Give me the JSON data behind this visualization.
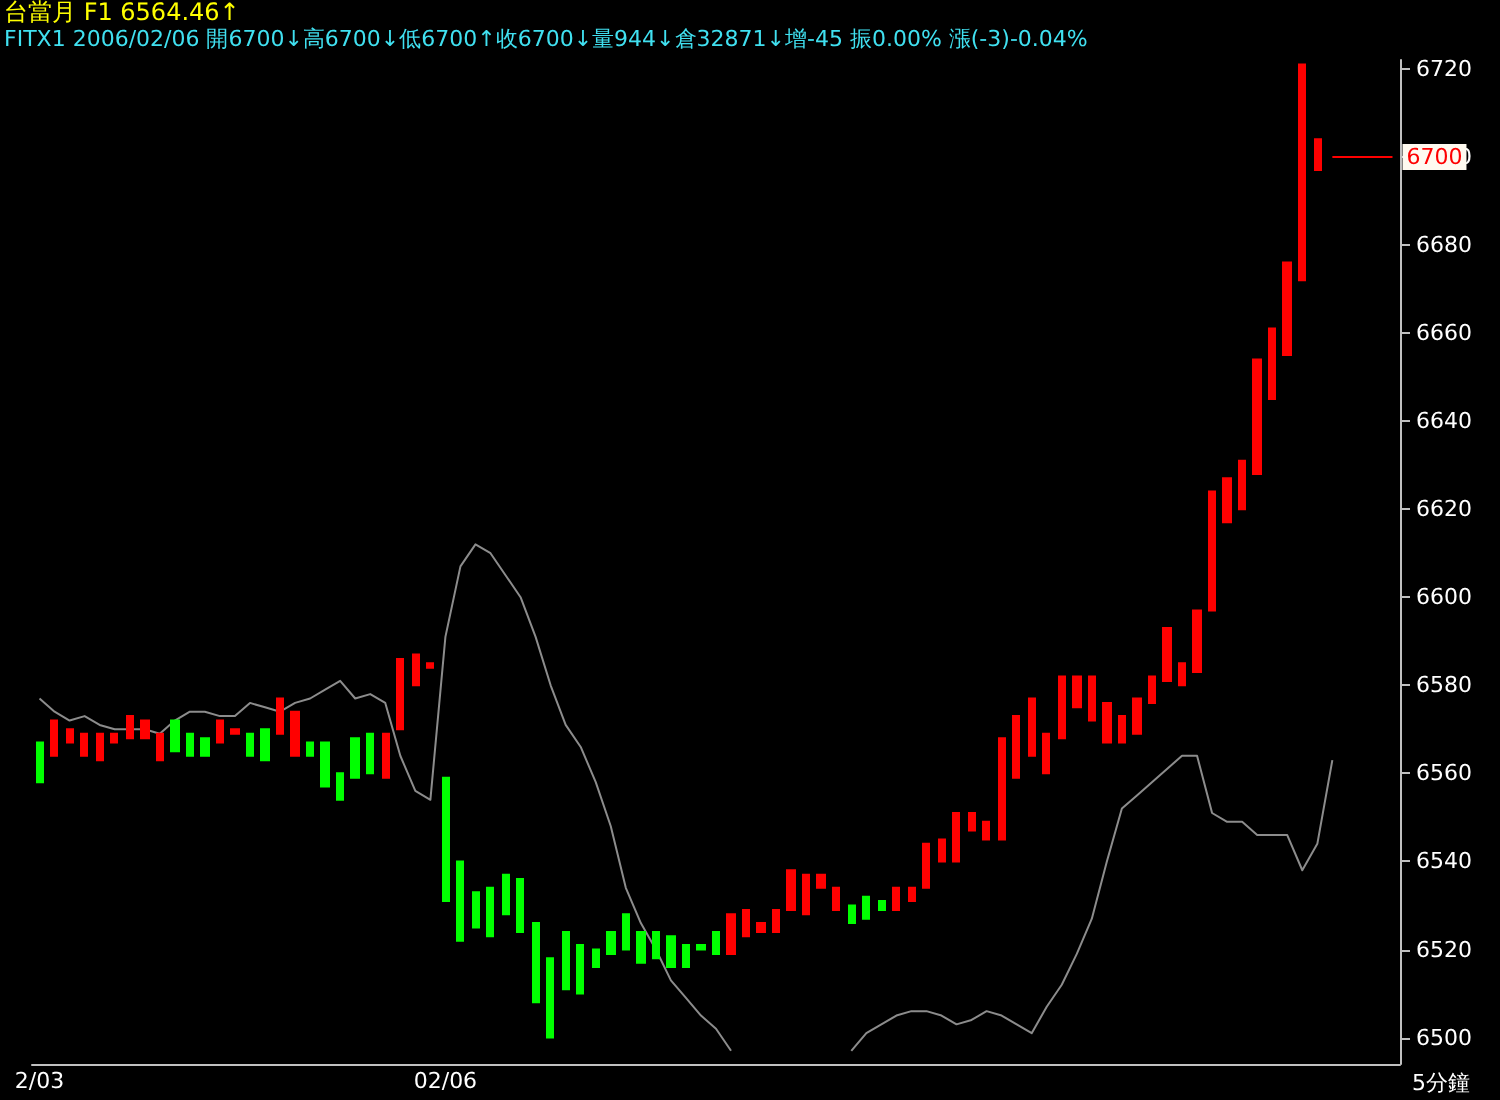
{
  "chart_data": {
    "type": "candlestick",
    "title": "台當月 F1 6564.46↑",
    "subtitle": "FITX1 2006/02/06 開6700↓高6700↓低6700↑收6700↓量944↓倉32871↓增-45 振0.00% 漲(-3)-0.04%",
    "xlabel": "5分鐘",
    "categories": [
      "2/03",
      null,
      null,
      null,
      null,
      null,
      null,
      null,
      null,
      null,
      null,
      null,
      null,
      null,
      null,
      null,
      null,
      null,
      null,
      null,
      null,
      null,
      null,
      null,
      null,
      null,
      null,
      "02/06",
      null,
      null,
      null,
      null,
      null,
      null,
      null,
      null,
      null,
      null,
      null,
      null,
      null,
      null,
      null,
      null,
      null,
      null,
      null,
      null,
      null,
      null,
      null,
      null,
      null,
      null,
      null,
      null,
      null,
      null,
      null,
      null,
      null,
      null,
      null,
      null,
      null,
      null,
      null,
      null,
      null,
      null,
      null,
      null,
      null,
      null,
      null,
      null,
      null,
      null,
      null,
      null,
      null,
      null,
      null,
      null,
      null,
      null,
      null,
      null,
      null,
      null,
      null
    ],
    "ylim": [
      6494,
      6722
    ],
    "yticks": [
      6500,
      6520,
      6540,
      6560,
      6580,
      6600,
      6620,
      6640,
      6660,
      6680,
      6700,
      6720
    ],
    "grid": false,
    "series": [
      {
        "ohlc": [
          [
            6567,
            6567,
            6558,
            6558
          ],
          [
            6564,
            6572,
            6564,
            6572
          ],
          [
            6567,
            6570,
            6567,
            6570
          ],
          [
            6564,
            6569,
            6564,
            6569
          ],
          [
            6563,
            6569,
            6563,
            6569
          ],
          [
            6567,
            6569,
            6567,
            6569
          ],
          [
            6568,
            6573,
            6568,
            6573
          ],
          [
            6568,
            6572,
            6568,
            6572
          ],
          [
            6563,
            6569,
            6563,
            6569
          ],
          [
            6572,
            6572,
            6565,
            6565
          ],
          [
            6569,
            6569,
            6564,
            6564
          ],
          [
            6568,
            6568,
            6564,
            6564
          ],
          [
            6567,
            6572,
            6567,
            6572
          ],
          [
            6569,
            6570,
            6569,
            6570
          ],
          [
            6569,
            6569,
            6564,
            6564
          ],
          [
            6570,
            6570,
            6563,
            6563
          ],
          [
            6569,
            6577,
            6569,
            6577
          ],
          [
            6564,
            6574,
            6564,
            6574
          ],
          [
            6567,
            6567,
            6564,
            6564
          ],
          [
            6567,
            6567,
            6557,
            6557
          ],
          [
            6560,
            6560,
            6554,
            6554
          ],
          [
            6568,
            6568,
            6559,
            6559
          ],
          [
            6569,
            6569,
            6560,
            6560
          ],
          [
            6559,
            6569,
            6559,
            6569
          ],
          [
            6570,
            6586,
            6570,
            6586
          ],
          [
            6580,
            6587,
            6580,
            6587
          ],
          [
            6584,
            6585,
            6584,
            6585
          ],
          [
            6559,
            6559,
            6531,
            6531
          ],
          [
            6540,
            6540,
            6522,
            6522
          ],
          [
            6533,
            6533,
            6525,
            6525
          ],
          [
            6534,
            6534,
            6523,
            6523
          ],
          [
            6537,
            6537,
            6528,
            6528
          ],
          [
            6536,
            6536,
            6524,
            6524
          ],
          [
            6526,
            6526,
            6508,
            6508
          ],
          [
            6518,
            6518,
            6500,
            6500
          ],
          [
            6524,
            6524,
            6511,
            6511
          ],
          [
            6521,
            6521,
            6510,
            6510
          ],
          [
            6520,
            6520,
            6516,
            6516
          ],
          [
            6524,
            6524,
            6519,
            6519
          ],
          [
            6528,
            6528,
            6520,
            6520
          ],
          [
            6524,
            6524,
            6517,
            6517
          ],
          [
            6524,
            6524,
            6518,
            6518
          ],
          [
            6523,
            6523,
            6516,
            6516
          ],
          [
            6521,
            6521,
            6516,
            6516
          ],
          [
            6521,
            6521,
            6520,
            6520
          ],
          [
            6524,
            6524,
            6519,
            6519
          ],
          [
            6519,
            6528,
            6519,
            6528
          ],
          [
            6523,
            6529,
            6523,
            6529
          ],
          [
            6524,
            6526,
            6524,
            6526
          ],
          [
            6524,
            6529,
            6524,
            6529
          ],
          [
            6529,
            6538,
            6529,
            6538
          ],
          [
            6528,
            6537,
            6528,
            6537
          ],
          [
            6534,
            6537,
            6534,
            6537
          ],
          [
            6529,
            6534,
            6529,
            6534
          ],
          [
            6530,
            6530,
            6526,
            6526
          ],
          [
            6532,
            6532,
            6527,
            6527
          ],
          [
            6531,
            6531,
            6529,
            6529
          ],
          [
            6529,
            6534,
            6529,
            6534
          ],
          [
            6531,
            6534,
            6531,
            6534
          ],
          [
            6534,
            6544,
            6534,
            6544
          ],
          [
            6540,
            6545,
            6540,
            6545
          ],
          [
            6540,
            6551,
            6540,
            6551
          ],
          [
            6547,
            6551,
            6547,
            6551
          ],
          [
            6545,
            6549,
            6545,
            6549
          ],
          [
            6545,
            6568,
            6545,
            6568
          ],
          [
            6559,
            6573,
            6559,
            6573
          ],
          [
            6564,
            6577,
            6564,
            6577
          ],
          [
            6560,
            6569,
            6560,
            6569
          ],
          [
            6568,
            6582,
            6568,
            6582
          ],
          [
            6575,
            6582,
            6575,
            6582
          ],
          [
            6572,
            6582,
            6572,
            6582
          ],
          [
            6567,
            6576,
            6567,
            6576
          ],
          [
            6567,
            6573,
            6567,
            6573
          ],
          [
            6569,
            6577,
            6569,
            6577
          ],
          [
            6576,
            6582,
            6576,
            6582
          ],
          [
            6581,
            6593,
            6581,
            6593
          ],
          [
            6580,
            6585,
            6580,
            6585
          ],
          [
            6583,
            6597,
            6583,
            6597
          ],
          [
            6597,
            6624,
            6597,
            6624
          ],
          [
            6617,
            6627,
            6617,
            6627
          ],
          [
            6620,
            6631,
            6620,
            6631
          ],
          [
            6628,
            6654,
            6628,
            6654
          ],
          [
            6645,
            6661,
            6645,
            6661
          ],
          [
            6655,
            6676,
            6655,
            6676
          ],
          [
            6672,
            6721,
            6672,
            6721
          ],
          [
            6697,
            6704,
            6697,
            6704
          ],
          null,
          null,
          null,
          null,
          null
        ],
        "colors": [
          "#00ff00",
          "#ff0000",
          "#ff0000",
          "#ff0000",
          "#ff0000",
          "#ff0000",
          "#ff0000",
          "#ff0000",
          "#ff0000",
          "#00ff00",
          "#00ff00",
          "#00ff00",
          "#ff0000",
          "#ff0000",
          "#00ff00",
          "#00ff00",
          "#ff0000",
          "#ff0000",
          "#00ff00",
          "#00ff00",
          "#00ff00",
          "#00ff00",
          "#00ff00",
          "#ff0000",
          "#ff0000",
          "#ff0000",
          "#ff0000",
          "#00ff00",
          "#00ff00",
          "#00ff00",
          "#00ff00",
          "#00ff00",
          "#00ff00",
          "#00ff00",
          "#00ff00",
          "#00ff00",
          "#00ff00",
          "#00ff00",
          "#00ff00",
          "#00ff00",
          "#00ff00",
          "#00ff00",
          "#00ff00",
          "#00ff00",
          "#00ff00",
          "#00ff00",
          "#ff0000",
          "#ff0000",
          "#ff0000",
          "#ff0000",
          "#ff0000",
          "#ff0000",
          "#ff0000",
          "#ff0000",
          "#00ff00",
          "#00ff00",
          "#00ff00",
          "#ff0000",
          "#ff0000",
          "#ff0000",
          "#ff0000",
          "#ff0000",
          "#ff0000",
          "#ff0000",
          "#ff0000",
          "#ff0000",
          "#ff0000",
          "#ff0000",
          "#ff0000",
          "#ff0000",
          "#ff0000",
          "#ff0000",
          "#ff0000",
          "#ff0000",
          "#ff0000",
          "#ff0000",
          "#ff0000",
          "#ff0000",
          "#ff0000",
          "#ff0000",
          "#ff0000",
          "#ff0000",
          "#ff0000",
          "#ff0000",
          "#ff0000",
          "#ff0000",
          null,
          null,
          null,
          null,
          null
        ]
      },
      {
        "type": "line",
        "color": "#8c8c8c",
        "marker": "none",
        "values": [
          6577,
          6574,
          6572,
          6573,
          6571,
          6570,
          6570,
          6570,
          6569,
          6572,
          6574,
          6574,
          6573,
          6573,
          6576,
          6575,
          6574,
          6576,
          6577,
          6579,
          6581,
          6577,
          6578,
          6576,
          6564,
          6556,
          6554,
          6591,
          6607,
          6612,
          6610,
          6605,
          6600,
          6591,
          6580,
          6571,
          6566,
          6558,
          6548,
          6534,
          6526,
          6520,
          6513,
          6509,
          6505,
          6502,
          6497,
          null,
          null,
          null,
          null,
          null,
          null,
          null,
          6497,
          6501,
          6503,
          6505,
          6506,
          6506,
          6505,
          6503,
          6504,
          6506,
          6505,
          6503,
          6501,
          6507,
          6512,
          6519,
          6527,
          6540,
          6552,
          6555,
          6558,
          6561,
          6564,
          6564,
          6551,
          6549,
          6549,
          6546,
          6546,
          6546,
          6538,
          6544,
          6563,
          null,
          null,
          null,
          null
        ]
      }
    ],
    "ref_lines": [
      {
        "axis": "y",
        "value": 6700,
        "label": "6700",
        "color": "#ff0000"
      }
    ]
  }
}
